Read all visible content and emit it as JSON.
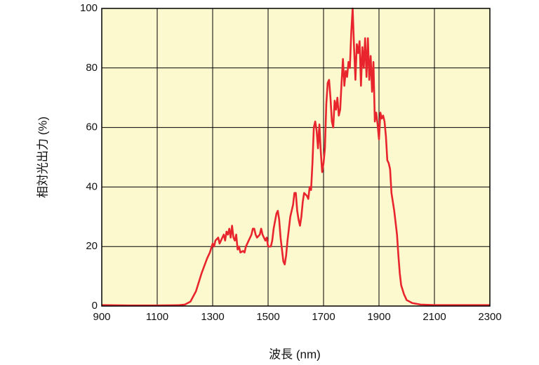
{
  "chart_data": {
    "type": "line",
    "xlabel": "波長 (nm)",
    "ylabel": "相対光出力 (%)",
    "xlim": [
      900,
      2300
    ],
    "xticks": [
      900,
      1100,
      1300,
      1500,
      1700,
      1900,
      2100,
      2300
    ],
    "ylim": [
      0,
      100
    ],
    "yticks": [
      0,
      20,
      40,
      60,
      80,
      100
    ],
    "grid": true,
    "background": "#fdf9cf",
    "series": [
      {
        "color": "#e8242c",
        "x": [
          900,
          1000,
          1100,
          1180,
          1200,
          1220,
          1240,
          1260,
          1280,
          1290,
          1300,
          1305,
          1310,
          1320,
          1325,
          1330,
          1340,
          1345,
          1350,
          1355,
          1360,
          1365,
          1370,
          1375,
          1380,
          1385,
          1390,
          1395,
          1400,
          1410,
          1415,
          1420,
          1430,
          1440,
          1445,
          1450,
          1455,
          1460,
          1470,
          1475,
          1480,
          1490,
          1495,
          1500,
          1510,
          1515,
          1520,
          1530,
          1535,
          1540,
          1545,
          1550,
          1555,
          1560,
          1565,
          1570,
          1580,
          1590,
          1595,
          1600,
          1605,
          1610,
          1615,
          1620,
          1625,
          1630,
          1640,
          1645,
          1650,
          1655,
          1660,
          1665,
          1670,
          1675,
          1680,
          1685,
          1690,
          1695,
          1700,
          1705,
          1710,
          1715,
          1720,
          1725,
          1730,
          1735,
          1740,
          1745,
          1750,
          1755,
          1760,
          1765,
          1770,
          1775,
          1780,
          1785,
          1790,
          1795,
          1800,
          1805,
          1810,
          1815,
          1820,
          1825,
          1830,
          1835,
          1840,
          1845,
          1850,
          1855,
          1860,
          1865,
          1870,
          1875,
          1880,
          1885,
          1890,
          1895,
          1900,
          1905,
          1910,
          1915,
          1920,
          1925,
          1930,
          1935,
          1940,
          1945,
          1950,
          1955,
          1960,
          1965,
          1970,
          1975,
          1980,
          1990,
          2000,
          2020,
          2050,
          2100,
          2200,
          2300
        ],
        "values": [
          0.3,
          0.2,
          0.2,
          0.3,
          0.5,
          1.5,
          5,
          11,
          16,
          18,
          21,
          20,
          22,
          23,
          21,
          22,
          24,
          22,
          25,
          24,
          26,
          23,
          27,
          23,
          22,
          24,
          19,
          20,
          18,
          18.5,
          18,
          20,
          22,
          24,
          26,
          26,
          24,
          23,
          24,
          26,
          24,
          22,
          23,
          20,
          20,
          22,
          26,
          31,
          32,
          29,
          23,
          19,
          15,
          14,
          17,
          22,
          30,
          34,
          38,
          38,
          32,
          29,
          27,
          30,
          35,
          38,
          37,
          36,
          40,
          39,
          48,
          60,
          62,
          59,
          53,
          61,
          52,
          45,
          48,
          53,
          68,
          75,
          76,
          70,
          62,
          60,
          69,
          66,
          70,
          64,
          66,
          75,
          83,
          74,
          79,
          77,
          82,
          80,
          92,
          100,
          87,
          76,
          88,
          85,
          89,
          74,
          87,
          80,
          90,
          77,
          90,
          76,
          84,
          72,
          82,
          62,
          65,
          61,
          56,
          65,
          63,
          64,
          62,
          57,
          49,
          48,
          46,
          38,
          35,
          32,
          28,
          24,
          17,
          11,
          7,
          4,
          2,
          1,
          0.5,
          0.3,
          0.3,
          0.3
        ]
      }
    ]
  }
}
